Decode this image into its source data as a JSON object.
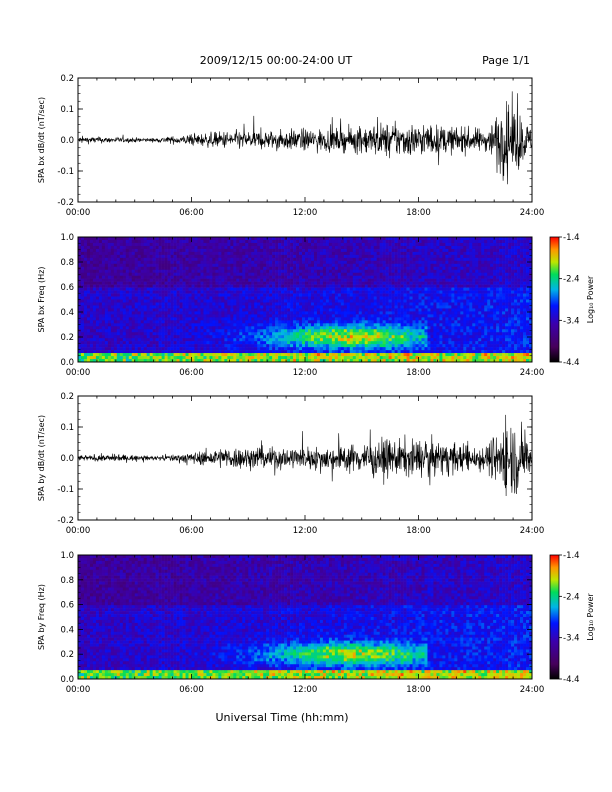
{
  "header": {
    "date_range": "2009/12/15  00:00-24:00 UT",
    "page": "Page 1/1"
  },
  "x_tick_labels": [
    "00:00",
    "06:00",
    "12:00",
    "18:00",
    "24:00"
  ],
  "x_axis_title": "Universal Time (hh:mm)",
  "colorbar": {
    "tick_labels": [
      "-1.4",
      "-2.4",
      "-3.4",
      "-4.4"
    ],
    "title": "Log₁₀ Power"
  },
  "chart_data": [
    {
      "type": "line",
      "title": "",
      "ylabel": "SPA bx dB/dt (nT/sec)",
      "xlim": [
        0,
        24
      ],
      "ylim": [
        -0.2,
        0.2
      ],
      "y_tick_labels": [
        "0.2",
        "0.1",
        "0.0",
        "-0.1",
        "-0.2"
      ],
      "series": [
        {
          "x": [
            0,
            2,
            4,
            6,
            8,
            10,
            12,
            14,
            16,
            18,
            20,
            21.6,
            22.5,
            23.2,
            24
          ],
          "amplitude": [
            0.02,
            0.015,
            0.01,
            0.03,
            0.05,
            0.05,
            0.06,
            0.06,
            0.09,
            0.09,
            0.07,
            0.06,
            0.2,
            0.18,
            0.05
          ]
        }
      ],
      "grid": false
    },
    {
      "type": "heatmap",
      "title": "",
      "ylabel": "SPA bx Freq (Hz)",
      "xlim": [
        0,
        24
      ],
      "ylim": [
        0,
        1.0
      ],
      "y_tick_labels": [
        "1.0",
        "0.8",
        "0.6",
        "0.4",
        "0.2",
        "0.0"
      ],
      "color_range": [
        -4.4,
        -1.4
      ],
      "features": [
        {
          "kind": "band",
          "x_start": 5,
          "x_end": 18,
          "freq": 0.2,
          "peak_log_power": -2.4
        },
        {
          "kind": "vertical",
          "x": 18.5,
          "log_power": -3.2
        },
        {
          "kind": "vertical",
          "x": 20.9,
          "log_power": -3.3
        },
        {
          "kind": "vertical",
          "x": 21.6,
          "log_power": -3.3
        },
        {
          "kind": "vertical",
          "x": 22.6,
          "log_power": -3.2
        }
      ]
    },
    {
      "type": "line",
      "title": "",
      "ylabel": "SPA by dB/dt (nT/sec)",
      "xlim": [
        0,
        24
      ],
      "ylim": [
        -0.2,
        0.2
      ],
      "y_tick_labels": [
        "0.2",
        "0.1",
        "0.0",
        "-0.1",
        "-0.2"
      ],
      "series": [
        {
          "x": [
            0,
            2,
            4,
            6,
            8,
            10,
            12,
            14,
            16,
            18,
            20,
            21.6,
            22.5,
            23.2,
            24
          ],
          "amplitude": [
            0.015,
            0.02,
            0.01,
            0.03,
            0.06,
            0.06,
            0.06,
            0.07,
            0.1,
            0.1,
            0.08,
            0.07,
            0.2,
            0.2,
            0.05
          ]
        }
      ],
      "grid": false
    },
    {
      "type": "heatmap",
      "title": "",
      "ylabel": "SPA by Freq (Hz)",
      "xlim": [
        0,
        24
      ],
      "ylim": [
        0,
        1.0
      ],
      "y_tick_labels": [
        "1.0",
        "0.8",
        "0.6",
        "0.4",
        "0.2",
        "0.0"
      ],
      "color_range": [
        -4.4,
        -1.4
      ],
      "features": [
        {
          "kind": "band",
          "x_start": 5,
          "x_end": 18,
          "freq": 0.2,
          "peak_log_power": -2.4
        },
        {
          "kind": "vertical",
          "x": 18.6,
          "log_power": -3.1
        },
        {
          "kind": "vertical",
          "x": 19.0,
          "log_power": -3.2
        },
        {
          "kind": "vertical",
          "x": 21.0,
          "log_power": -3.2
        },
        {
          "kind": "vertical",
          "x": 21.7,
          "log_power": -3.2
        },
        {
          "kind": "vertical",
          "x": 22.5,
          "log_power": -3.2
        }
      ]
    }
  ]
}
